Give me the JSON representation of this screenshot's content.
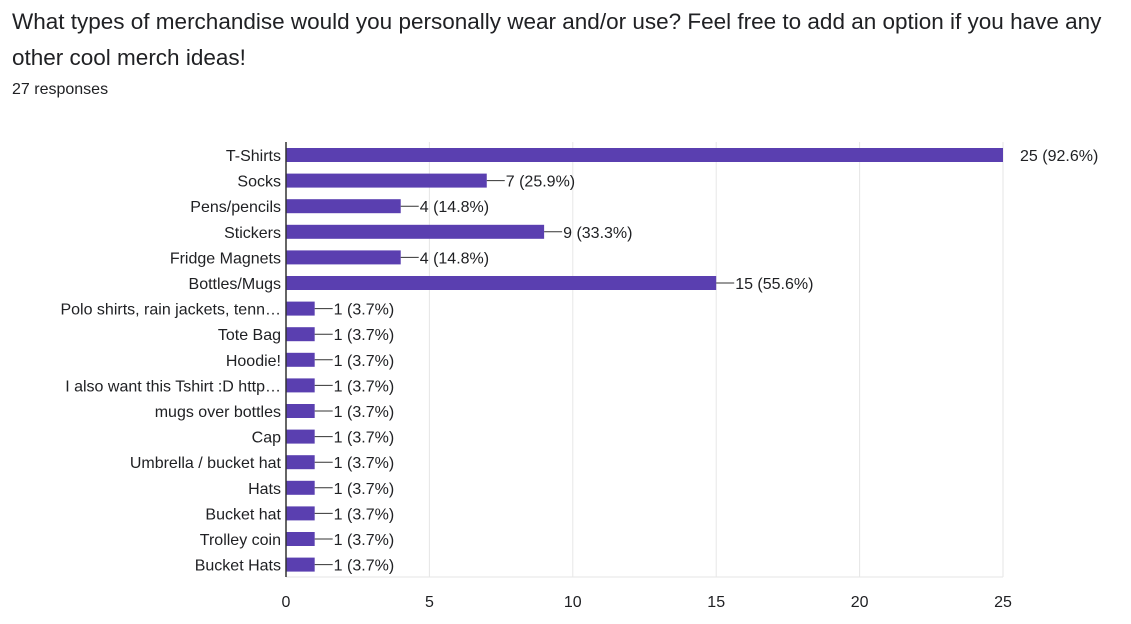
{
  "question": {
    "title": "What types of merchandise would you personally wear and/or use? Feel free to add an option if you have any other cool merch ideas!",
    "response_count": "27 responses"
  },
  "colors": {
    "bar": "#5a3fb0",
    "grid": "#e6e6e6",
    "axis": "#333333",
    "text": "#202124"
  },
  "chart_data": {
    "type": "bar",
    "orientation": "horizontal",
    "title": "",
    "xlabel": "",
    "ylabel": "",
    "xlim": [
      0,
      25
    ],
    "xticks": [
      0,
      5,
      10,
      15,
      20,
      25
    ],
    "grid": true,
    "categories": [
      "T-Shirts",
      "Socks",
      "Pens/pencils",
      "Stickers",
      "Fridge Magnets",
      "Bottles/Mugs",
      "Polo shirts, rain jackets, tenn…",
      "Tote Bag",
      "Hoodie!",
      "I also want this Tshirt :D http…",
      "mugs over bottles",
      "Cap",
      "Umbrella / bucket hat",
      "Hats",
      "Bucket hat",
      "Trolley coin",
      "Bucket Hats"
    ],
    "values": [
      25,
      7,
      4,
      9,
      4,
      15,
      1,
      1,
      1,
      1,
      1,
      1,
      1,
      1,
      1,
      1,
      1
    ],
    "data_labels": [
      "25 (92.6%)",
      "7 (25.9%)",
      "4 (14.8%)",
      "9 (33.3%)",
      "4 (14.8%)",
      "15 (55.6%)",
      "1 (3.7%)",
      "1 (3.7%)",
      "1 (3.7%)",
      "1 (3.7%)",
      "1 (3.7%)",
      "1 (3.7%)",
      "1 (3.7%)",
      "1 (3.7%)",
      "1 (3.7%)",
      "1 (3.7%)",
      "1 (3.7%)"
    ]
  }
}
